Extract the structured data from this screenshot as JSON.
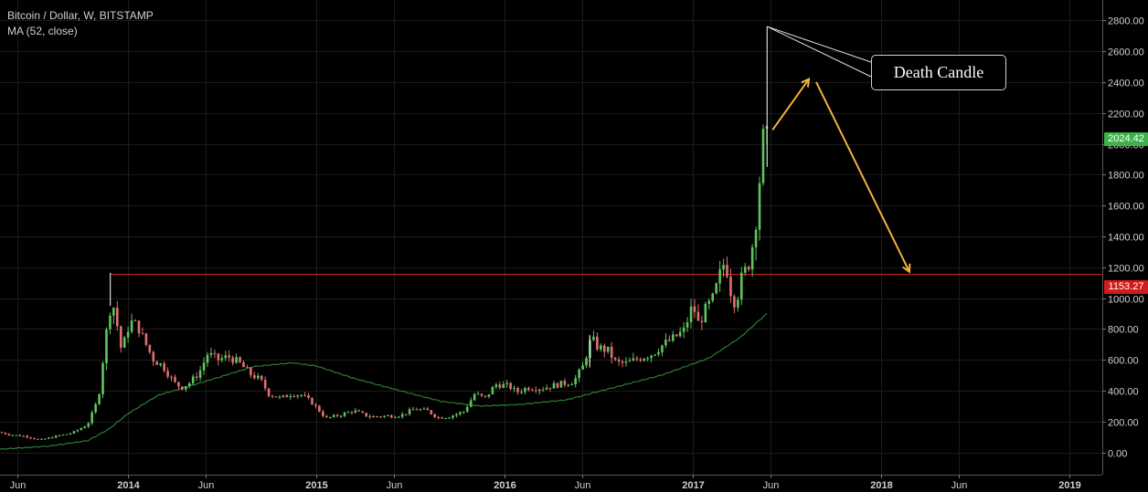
{
  "legend": {
    "symbol": "Bitcoin / Dollar, W, BITSTAMP",
    "indicator": "MA (52, close)"
  },
  "annotation": {
    "text": "Death Candle"
  },
  "badges": {
    "last_price": "2024.42",
    "hline_price": "1153.27"
  },
  "colors": {
    "background": "#000000",
    "up": "#5fc45f",
    "down": "#e07070",
    "ma": "#2e7d32",
    "hline": "#e02020",
    "arrow": "#f3b13c",
    "last_badge": "#3bb34a",
    "hline_badge": "#d21b1b"
  },
  "chart_data": {
    "type": "candlestick",
    "title": "Bitcoin / Dollar, W, BITSTAMP",
    "y_ticks": [
      0,
      200,
      400,
      600,
      800,
      1000,
      1200,
      1400,
      1600,
      1800,
      2000,
      2200,
      2400,
      2600,
      2800
    ],
    "y_tick_labels": [
      "0.00",
      "200.00",
      "400.00",
      "600.00",
      "800.00",
      "1000.00",
      "1200.00",
      "1400.00",
      "1600.00",
      "1800.00",
      "2000.00",
      "2200.00",
      "2400.00",
      "2600.00",
      "2800.00"
    ],
    "x_tick_labels": [
      "Jun",
      "2014",
      "Jun",
      "2015",
      "Jun",
      "2016",
      "Jun",
      "2017",
      "Jun",
      "2018",
      "Jun",
      "2019"
    ],
    "x_tick_dates": [
      "2013-06-01",
      "2014-01-01",
      "2014-06-01",
      "2015-01-01",
      "2015-06-01",
      "2016-01-01",
      "2016-06-01",
      "2017-01-01",
      "2017-06-01",
      "2018-01-01",
      "2018-06-01",
      "2019-01-01"
    ],
    "ylim": [
      -60,
      2880
    ],
    "horizontal_line": 1153.27,
    "last_price": 2024.42,
    "close_trajectory": [
      [
        "2013-04-28",
        130
      ],
      [
        "2013-05-15",
        115
      ],
      [
        "2013-06-15",
        105
      ],
      [
        "2013-07-15",
        80
      ],
      [
        "2013-08-15",
        105
      ],
      [
        "2013-09-15",
        125
      ],
      [
        "2013-10-15",
        180
      ],
      [
        "2013-11-05",
        350
      ],
      [
        "2013-11-19",
        750
      ],
      [
        "2013-12-01",
        1000
      ],
      [
        "2013-12-10",
        850
      ],
      [
        "2013-12-20",
        650
      ],
      [
        "2014-01-05",
        850
      ],
      [
        "2014-01-20",
        820
      ],
      [
        "2014-02-05",
        700
      ],
      [
        "2014-02-20",
        600
      ],
      [
        "2014-03-10",
        560
      ],
      [
        "2014-04-01",
        450
      ],
      [
        "2014-04-15",
        420
      ],
      [
        "2014-05-01",
        450
      ],
      [
        "2014-05-20",
        520
      ],
      [
        "2014-06-05",
        640
      ],
      [
        "2014-06-25",
        600
      ],
      [
        "2014-07-15",
        620
      ],
      [
        "2014-08-05",
        580
      ],
      [
        "2014-08-25",
        510
      ],
      [
        "2014-09-15",
        470
      ],
      [
        "2014-10-01",
        380
      ],
      [
        "2014-10-25",
        350
      ],
      [
        "2014-11-15",
        380
      ],
      [
        "2014-12-05",
        370
      ],
      [
        "2014-12-25",
        320
      ],
      [
        "2015-01-10",
        260
      ],
      [
        "2015-01-20",
        220
      ],
      [
        "2015-02-15",
        240
      ],
      [
        "2015-03-15",
        270
      ],
      [
        "2015-04-15",
        230
      ],
      [
        "2015-05-15",
        235
      ],
      [
        "2015-06-15",
        240
      ],
      [
        "2015-07-10",
        280
      ],
      [
        "2015-08-05",
        270
      ],
      [
        "2015-08-25",
        225
      ],
      [
        "2015-09-15",
        230
      ],
      [
        "2015-10-15",
        265
      ],
      [
        "2015-11-05",
        380
      ],
      [
        "2015-11-25",
        350
      ],
      [
        "2015-12-15",
        440
      ],
      [
        "2016-01-10",
        430
      ],
      [
        "2016-01-25",
        390
      ],
      [
        "2016-02-15",
        420
      ],
      [
        "2016-03-15",
        415
      ],
      [
        "2016-04-15",
        440
      ],
      [
        "2016-05-15",
        460
      ],
      [
        "2016-06-01",
        550
      ],
      [
        "2016-06-18",
        740
      ],
      [
        "2016-07-01",
        680
      ],
      [
        "2016-07-20",
        660
      ],
      [
        "2016-08-05",
        580
      ],
      [
        "2016-08-25",
        575
      ],
      [
        "2016-09-15",
        605
      ],
      [
        "2016-10-15",
        640
      ],
      [
        "2016-11-05",
        700
      ],
      [
        "2016-11-25",
        740
      ],
      [
        "2016-12-15",
        790
      ],
      [
        "2017-01-01",
        960
      ],
      [
        "2017-01-12",
        830
      ],
      [
        "2017-01-25",
        920
      ],
      [
        "2017-02-10",
        1000
      ],
      [
        "2017-02-25",
        1180
      ],
      [
        "2017-03-05",
        1250
      ],
      [
        "2017-03-15",
        1050
      ],
      [
        "2017-03-25",
        960
      ],
      [
        "2017-04-05",
        1120
      ],
      [
        "2017-04-20",
        1230
      ],
      [
        "2017-05-01",
        1420
      ],
      [
        "2017-05-10",
        1750
      ],
      [
        "2017-05-18",
        2050
      ],
      [
        "2017-05-25",
        2024.42
      ]
    ],
    "spikes": [
      [
        "2013-11-28",
        1163,
        950
      ],
      [
        "2016-06-15",
        760,
        550
      ],
      [
        "2017-05-25",
        2760,
        1850
      ]
    ],
    "moving_average": [
      [
        "2013-04-28",
        20
      ],
      [
        "2013-08-01",
        40
      ],
      [
        "2013-10-15",
        75
      ],
      [
        "2013-11-25",
        150
      ],
      [
        "2014-01-01",
        250
      ],
      [
        "2014-03-01",
        370
      ],
      [
        "2014-06-01",
        460
      ],
      [
        "2014-09-01",
        555
      ],
      [
        "2014-11-15",
        580
      ],
      [
        "2015-01-01",
        560
      ],
      [
        "2015-03-15",
        480
      ],
      [
        "2015-06-01",
        410
      ],
      [
        "2015-09-01",
        330
      ],
      [
        "2015-11-15",
        300
      ],
      [
        "2016-02-01",
        310
      ],
      [
        "2016-05-01",
        340
      ],
      [
        "2016-08-01",
        420
      ],
      [
        "2016-11-01",
        500
      ],
      [
        "2017-02-01",
        610
      ],
      [
        "2017-04-01",
        740
      ],
      [
        "2017-05-25",
        900
      ]
    ]
  }
}
